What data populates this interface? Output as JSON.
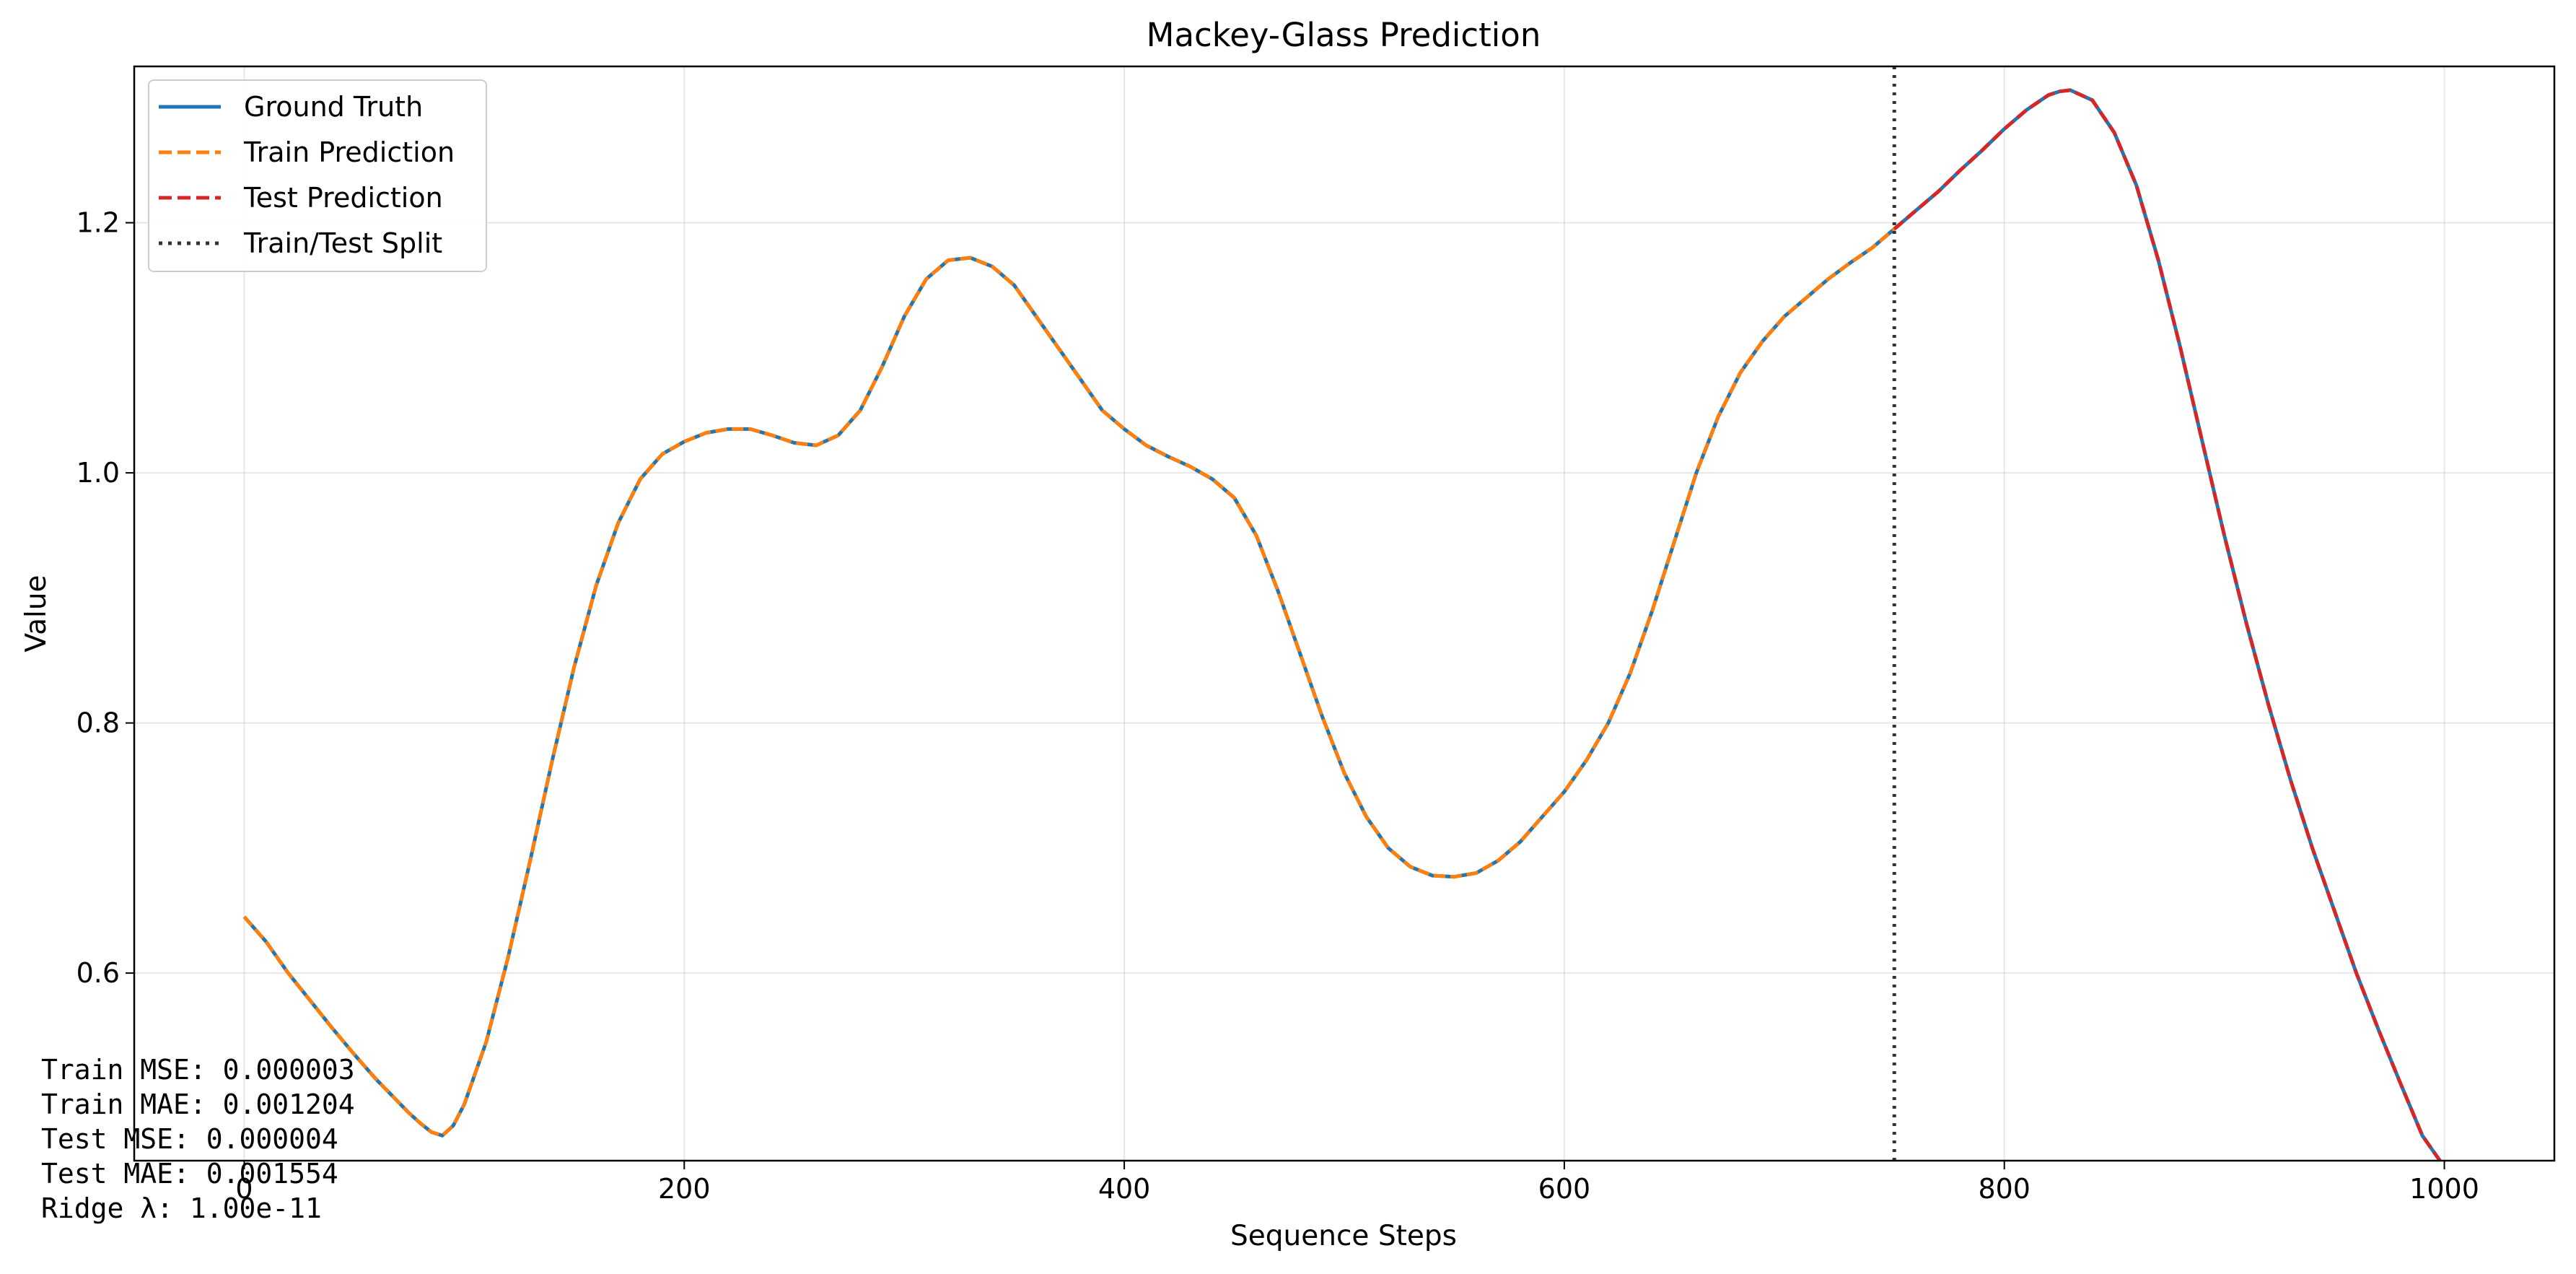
{
  "chart_data": {
    "type": "line",
    "title": "Mackey-Glass Prediction",
    "xlabel": "Sequence Steps",
    "ylabel": "Value",
    "xlim": [
      -50,
      1050
    ],
    "ylim": [
      0.45,
      1.325
    ],
    "xticks": [
      0,
      200,
      400,
      600,
      800,
      1000
    ],
    "yticks": [
      0.6,
      0.8,
      1.0,
      1.2
    ],
    "grid": true,
    "legend_position": "top-left",
    "split_x": 750,
    "series": [
      {
        "name": "Ground Truth",
        "color": "#1f77b4",
        "style": "solid",
        "x": [
          0,
          10,
          20,
          30,
          40,
          50,
          60,
          70,
          75,
          80,
          85,
          90,
          95,
          100,
          110,
          120,
          130,
          140,
          150,
          160,
          170,
          180,
          190,
          200,
          210,
          220,
          230,
          240,
          250,
          260,
          270,
          280,
          290,
          300,
          310,
          320,
          330,
          340,
          350,
          360,
          370,
          380,
          390,
          400,
          410,
          420,
          430,
          440,
          450,
          460,
          470,
          480,
          490,
          500,
          510,
          520,
          530,
          540,
          550,
          560,
          570,
          580,
          590,
          600,
          610,
          620,
          630,
          640,
          650,
          660,
          670,
          680,
          690,
          700,
          710,
          720,
          730,
          740,
          750,
          760,
          770,
          780,
          790,
          800,
          810,
          820,
          825,
          830,
          840,
          850,
          860,
          870,
          880,
          890,
          900,
          910,
          920,
          930,
          940,
          950,
          960,
          970,
          980,
          990,
          998
        ],
        "y": [
          0.645,
          0.625,
          0.6,
          0.578,
          0.556,
          0.535,
          0.515,
          0.497,
          0.488,
          0.48,
          0.473,
          0.47,
          0.478,
          0.495,
          0.545,
          0.613,
          0.69,
          0.77,
          0.845,
          0.91,
          0.96,
          0.995,
          1.015,
          1.025,
          1.032,
          1.035,
          1.035,
          1.03,
          1.024,
          1.022,
          1.03,
          1.05,
          1.085,
          1.125,
          1.155,
          1.17,
          1.172,
          1.165,
          1.15,
          1.125,
          1.1,
          1.075,
          1.05,
          1.035,
          1.022,
          1.013,
          1.005,
          0.995,
          0.98,
          0.95,
          0.905,
          0.855,
          0.805,
          0.76,
          0.725,
          0.7,
          0.685,
          0.678,
          0.677,
          0.68,
          0.69,
          0.705,
          0.725,
          0.745,
          0.77,
          0.8,
          0.84,
          0.89,
          0.945,
          1.0,
          1.045,
          1.08,
          1.105,
          1.125,
          1.14,
          1.155,
          1.168,
          1.18,
          1.195,
          1.21,
          1.225,
          1.242,
          1.258,
          1.275,
          1.29,
          1.302,
          1.305,
          1.306,
          1.298,
          1.272,
          1.23,
          1.17,
          1.1,
          1.025,
          0.95,
          0.88,
          0.815,
          0.755,
          0.7,
          0.65,
          0.6,
          0.555,
          0.512,
          0.47,
          0.45
        ]
      },
      {
        "name": "Train Prediction",
        "color": "#ff7f0e",
        "style": "dashed"
      },
      {
        "name": "Test Prediction",
        "color": "#d62728",
        "style": "dashed"
      },
      {
        "name": "Train/Test Split",
        "color": "#333333",
        "style": "dotted"
      }
    ]
  },
  "metrics": {
    "train_mse": "Train MSE: 0.000003",
    "train_mae": "Train MAE: 0.001204",
    "test_mse": "Test MSE: 0.000004",
    "test_mae": "Test MAE: 0.001554",
    "ridge": "Ridge λ: 1.00e-11"
  }
}
